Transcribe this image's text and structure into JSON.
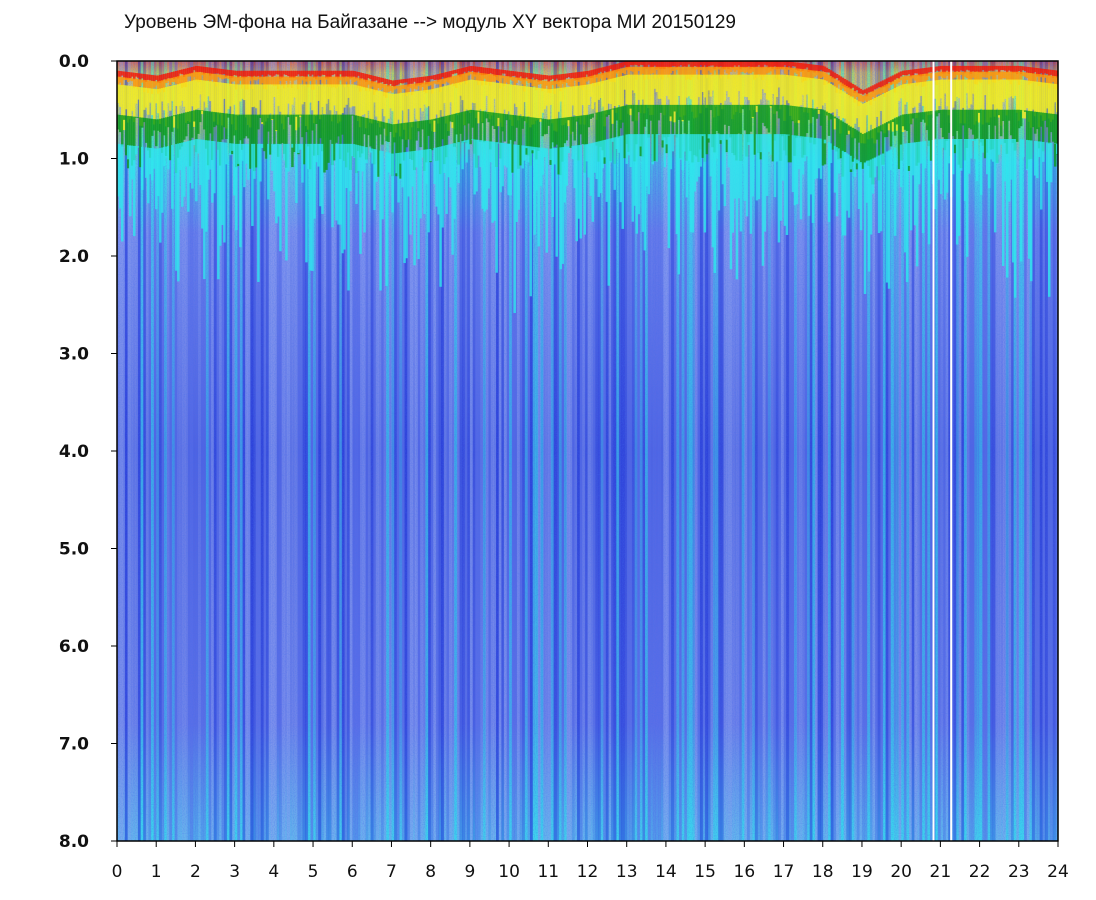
{
  "chart_data": {
    "type": "heatmap",
    "title": "Уровень ЭМ-фона на Байгазане  -->  модуль XY вектора МИ  20150129",
    "xlabel": "",
    "ylabel": "",
    "x_ticks": [
      "0",
      "1",
      "2",
      "3",
      "4",
      "5",
      "6",
      "7",
      "8",
      "9",
      "10",
      "11",
      "12",
      "13",
      "14",
      "15",
      "16",
      "17",
      "18",
      "19",
      "20",
      "21",
      "22",
      "23",
      "24"
    ],
    "y_ticks": [
      "0.0",
      "1.0",
      "2.0",
      "3.0",
      "4.0",
      "5.0",
      "6.0",
      "7.0",
      "8.0"
    ],
    "xlim": [
      0,
      24
    ],
    "ylim": [
      8,
      0
    ],
    "y_axis_inverted": true,
    "grid": false,
    "colormap": [
      "#1a2fd6",
      "#5a6ee8",
      "#8fa2f0",
      "#2fe6ee",
      "#0a9a1e",
      "#f2ee22",
      "#ff9a0a",
      "#f21a0a"
    ],
    "upper_edge_by_hour": [
      {
        "x": 0,
        "y": 0.1
      },
      {
        "x": 1,
        "y": 0.15
      },
      {
        "x": 2,
        "y": 0.05
      },
      {
        "x": 3,
        "y": 0.1
      },
      {
        "x": 4,
        "y": 0.1
      },
      {
        "x": 5,
        "y": 0.1
      },
      {
        "x": 6,
        "y": 0.1
      },
      {
        "x": 7,
        "y": 0.2
      },
      {
        "x": 8,
        "y": 0.15
      },
      {
        "x": 9,
        "y": 0.05
      },
      {
        "x": 10,
        "y": 0.1
      },
      {
        "x": 11,
        "y": 0.15
      },
      {
        "x": 12,
        "y": 0.1
      },
      {
        "x": 13,
        "y": 0.0
      },
      {
        "x": 14,
        "y": 0.0
      },
      {
        "x": 15,
        "y": 0.0
      },
      {
        "x": 16,
        "y": 0.0
      },
      {
        "x": 17,
        "y": 0.0
      },
      {
        "x": 18,
        "y": 0.05
      },
      {
        "x": 19,
        "y": 0.3
      },
      {
        "x": 20,
        "y": 0.1
      },
      {
        "x": 21,
        "y": 0.05
      },
      {
        "x": 22,
        "y": 0.05
      },
      {
        "x": 23,
        "y": 0.05
      },
      {
        "x": 24,
        "y": 0.1
      }
    ],
    "no_data_hours": [
      [
        20.8,
        20.85
      ],
      [
        21.25,
        21.3
      ]
    ]
  }
}
